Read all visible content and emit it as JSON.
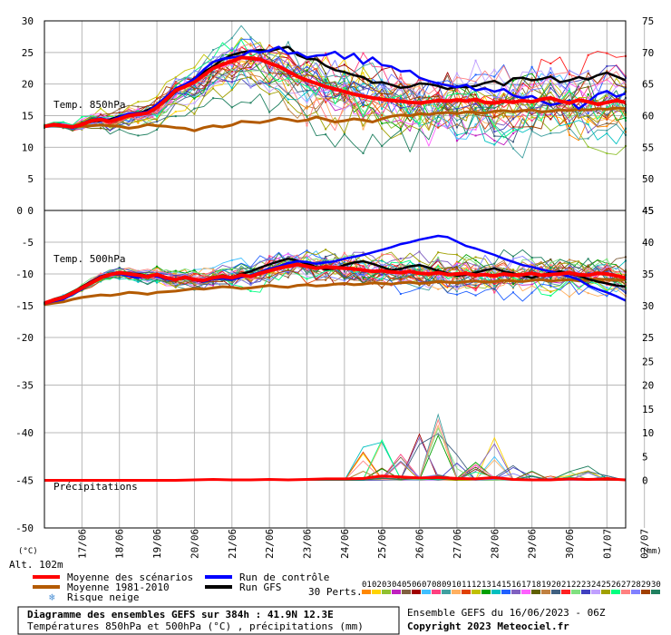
{
  "chart_data": {
    "type": "line",
    "dates": [
      "17/06",
      "18/06",
      "19/06",
      "20/06",
      "21/06",
      "22/06",
      "23/06",
      "24/06",
      "25/06",
      "26/06",
      "27/06",
      "28/06",
      "29/06",
      "30/06",
      "01/07",
      "02/07"
    ],
    "units_left": "(°C)",
    "units_right": "(mm)",
    "altitude": "Alt. 102m",
    "panels": [
      {
        "id": "t850",
        "label": "Temp. 850hPa",
        "ylim": [
          0,
          30
        ],
        "yticks": [
          0,
          5,
          10,
          15,
          20,
          25,
          30
        ],
        "right_ticks": [
          "45",
          "50",
          "55",
          "60",
          "65",
          "70",
          "75"
        ],
        "x": [
          0,
          0.25,
          0.5,
          0.75,
          1,
          1.25,
          1.5,
          1.75,
          2,
          2.25,
          2.5,
          2.75,
          3,
          3.25,
          3.5,
          3.75,
          4,
          4.25,
          4.5,
          4.75,
          5,
          5.25,
          5.5,
          5.75,
          6,
          6.25,
          6.5,
          6.75,
          7,
          7.25,
          7.5,
          7.75,
          8,
          8.25,
          8.5,
          8.75,
          9,
          9.25,
          9.5,
          9.75,
          10,
          10.25,
          10.5,
          10.75,
          11,
          11.25,
          11.5,
          11.75,
          12,
          12.25,
          12.5,
          12.75,
          13,
          13.25,
          13.5,
          13.75,
          14,
          14.25,
          14.5,
          14.75,
          15,
          15.25,
          15.5
        ],
        "mean": [
          13.3,
          13.6,
          13.4,
          13.2,
          13.6,
          14.2,
          14.4,
          14.1,
          14.5,
          15.0,
          15.2,
          15.4,
          16.3,
          17.6,
          19.0,
          19.6,
          20.3,
          21.4,
          22.5,
          23.1,
          23.6,
          24.2,
          24.1,
          23.9,
          23.3,
          22.8,
          22.0,
          21.2,
          20.6,
          20.1,
          19.6,
          19.2,
          18.8,
          18.4,
          18.1,
          17.8,
          17.6,
          17.4,
          17.3,
          17.1,
          17.0,
          17.2,
          17.4,
          17.3,
          17.5,
          17.3,
          17.6,
          17.1,
          17.0,
          17.3,
          17.1,
          17.4,
          17.2,
          17.6,
          17.8,
          17.3,
          17.0,
          17.5,
          17.2,
          16.8,
          17.1,
          17.4,
          17.1
        ],
        "control": [
          13.3,
          13.7,
          13.5,
          13.0,
          13.7,
          14.3,
          14.6,
          14.2,
          14.8,
          15.3,
          15.4,
          15.6,
          16.8,
          18.0,
          19.3,
          20.0,
          20.8,
          22.3,
          23.5,
          24.0,
          24.2,
          24.4,
          25.3,
          25.0,
          25.3,
          25.9,
          24.8,
          25.0,
          24.2,
          24.5,
          24.6,
          25.1,
          24.0,
          24.8,
          23.2,
          24.2,
          23.0,
          22.8,
          22.0,
          22.1,
          21.0,
          20.5,
          20.1,
          19.8,
          19.5,
          19.9,
          19.0,
          19.3,
          18.8,
          19.2,
          18.2,
          17.8,
          18.1,
          17.3,
          16.7,
          17.0,
          17.4,
          16.1,
          17.2,
          18.4,
          18.9,
          18.0,
          18.5
        ],
        "gfs": [
          13.3,
          13.6,
          13.5,
          13.1,
          13.5,
          14.1,
          14.2,
          14.4,
          14.9,
          15.2,
          15.3,
          15.9,
          16.6,
          17.4,
          18.8,
          19.7,
          20.9,
          21.9,
          22.8,
          23.9,
          24.6,
          25.0,
          25.2,
          25.4,
          25.2,
          25.6,
          25.9,
          24.6,
          24.0,
          23.9,
          22.9,
          22.2,
          21.9,
          21.4,
          21.1,
          20.2,
          20.3,
          19.9,
          19.4,
          19.6,
          20.1,
          20.0,
          19.7,
          19.2,
          19.6,
          19.5,
          19.7,
          20.2,
          20.5,
          19.8,
          20.9,
          21.0,
          20.6,
          20.8,
          21.2,
          20.3,
          20.6,
          21.1,
          20.7,
          21.4,
          21.8,
          21.2,
          20.6
        ],
        "climatology": [
          13.4,
          13.4,
          13.3,
          13.3,
          13.3,
          13.4,
          13.5,
          13.4,
          13.3,
          13.0,
          13.2,
          13.6,
          13.4,
          13.3,
          13.1,
          13.0,
          12.6,
          13.1,
          13.4,
          13.2,
          13.5,
          14.1,
          14.0,
          13.9,
          14.2,
          14.6,
          14.4,
          14.1,
          14.3,
          14.8,
          14.4,
          14.0,
          14.2,
          14.5,
          14.3,
          14.0,
          14.5,
          14.9,
          15.1,
          15.0,
          15.3,
          15.2,
          15.4,
          15.5,
          15.3,
          15.6,
          15.5,
          15.4,
          15.7,
          15.8,
          15.6,
          15.8,
          15.9,
          15.6,
          15.7,
          15.9,
          15.8,
          16.0,
          15.9,
          16.1,
          16.0,
          16.2,
          16.1
        ]
      },
      {
        "id": "t500",
        "label": "Temp. 500hPa",
        "ylim": [
          -20,
          0
        ],
        "yticks": [
          -20,
          -15,
          -10,
          -5,
          0
        ],
        "right_ticks": [
          "25",
          "30",
          "35",
          "40",
          "45"
        ],
        "x": [
          0,
          0.25,
          0.5,
          0.75,
          1,
          1.25,
          1.5,
          1.75,
          2,
          2.25,
          2.5,
          2.75,
          3,
          3.25,
          3.5,
          3.75,
          4,
          4.25,
          4.5,
          4.75,
          5,
          5.25,
          5.5,
          5.75,
          6,
          6.25,
          6.5,
          6.75,
          7,
          7.25,
          7.5,
          7.75,
          8,
          8.25,
          8.5,
          8.75,
          9,
          9.25,
          9.5,
          9.75,
          10,
          10.25,
          10.5,
          10.75,
          11,
          11.25,
          11.5,
          11.75,
          12,
          12.25,
          12.5,
          12.75,
          13,
          13.25,
          13.5,
          13.75,
          14,
          14.25,
          14.5,
          14.75,
          15,
          15.25,
          15.5
        ],
        "mean": [
          -14.6,
          -14.1,
          -13.7,
          -13.0,
          -12.2,
          -11.4,
          -10.6,
          -10.1,
          -9.8,
          -10.0,
          -10.2,
          -10.4,
          -10.1,
          -10.6,
          -10.9,
          -10.5,
          -10.9,
          -11.0,
          -10.6,
          -10.4,
          -10.6,
          -10.2,
          -10.4,
          -9.9,
          -9.5,
          -9.1,
          -8.8,
          -8.5,
          -8.8,
          -9.1,
          -8.9,
          -9.0,
          -9.1,
          -9.2,
          -9.4,
          -9.6,
          -9.5,
          -9.7,
          -9.8,
          -9.6,
          -9.9,
          -10.0,
          -9.8,
          -10.1,
          -10.0,
          -9.9,
          -10.2,
          -10.1,
          -10.3,
          -10.0,
          -10.2,
          -10.1,
          -9.9,
          -10.2,
          -10.1,
          -10.0,
          -9.8,
          -10.1,
          -10.2,
          -9.9,
          -10.0,
          -10.3,
          -10.6
        ],
        "control": [
          -14.7,
          -14.3,
          -14.0,
          -13.2,
          -12.4,
          -11.3,
          -10.5,
          -10.2,
          -10.0,
          -10.3,
          -10.6,
          -10.2,
          -10.4,
          -10.8,
          -11.0,
          -10.6,
          -11.0,
          -11.2,
          -10.8,
          -10.7,
          -10.9,
          -10.5,
          -10.2,
          -9.7,
          -9.2,
          -8.8,
          -8.3,
          -8.0,
          -8.1,
          -8.4,
          -8.2,
          -8.0,
          -7.6,
          -7.3,
          -7.0,
          -6.6,
          -6.2,
          -5.8,
          -5.3,
          -5.0,
          -4.6,
          -4.3,
          -4.0,
          -4.2,
          -4.9,
          -5.6,
          -6.0,
          -6.5,
          -7.0,
          -7.6,
          -8.1,
          -8.6,
          -8.9,
          -9.3,
          -9.6,
          -10.0,
          -10.4,
          -10.9,
          -11.8,
          -12.4,
          -12.9,
          -13.5,
          -14.2
        ],
        "gfs": [
          -14.6,
          -14.0,
          -13.6,
          -12.9,
          -12.0,
          -11.2,
          -10.4,
          -10.0,
          -9.7,
          -9.9,
          -10.0,
          -10.3,
          -10.2,
          -10.5,
          -10.8,
          -10.4,
          -10.8,
          -10.9,
          -10.5,
          -10.3,
          -10.5,
          -10.0,
          -9.6,
          -9.0,
          -8.5,
          -8.0,
          -7.6,
          -7.9,
          -8.4,
          -8.9,
          -9.3,
          -9.1,
          -8.6,
          -8.2,
          -8.0,
          -8.4,
          -8.9,
          -9.4,
          -9.2,
          -8.8,
          -8.6,
          -9.0,
          -9.5,
          -9.9,
          -10.3,
          -10.1,
          -9.8,
          -9.4,
          -9.1,
          -9.6,
          -9.9,
          -10.3,
          -10.6,
          -10.2,
          -9.8,
          -9.6,
          -9.9,
          -10.3,
          -10.8,
          -11.2,
          -11.5,
          -11.8,
          -12.0
        ],
        "climatology": [
          -14.8,
          -14.6,
          -14.4,
          -14.0,
          -13.7,
          -13.5,
          -13.3,
          -13.4,
          -13.2,
          -12.9,
          -13.0,
          -13.2,
          -12.9,
          -12.8,
          -12.7,
          -12.5,
          -12.3,
          -12.4,
          -12.2,
          -12.0,
          -12.1,
          -12.3,
          -12.2,
          -12.0,
          -11.8,
          -12.0,
          -12.1,
          -11.8,
          -11.7,
          -11.9,
          -11.8,
          -11.6,
          -11.5,
          -11.7,
          -11.6,
          -11.4,
          -11.5,
          -11.6,
          -11.4,
          -11.3,
          -11.5,
          -11.4,
          -11.2,
          -11.3,
          -11.4,
          -11.2,
          -11.1,
          -11.3,
          -11.2,
          -11.0,
          -11.1,
          -11.2,
          -11.0,
          -10.9,
          -11.1,
          -11.0,
          -10.9,
          -11.1,
          -11.0,
          -10.8,
          -10.9,
          -11.0,
          -10.9
        ]
      },
      {
        "id": "precip",
        "label": "Précipitations",
        "ylim": [
          -50,
          -30
        ],
        "yticks": [
          -50,
          -45,
          -40,
          -35,
          -30
        ],
        "right_ticks": [
          "0",
          "5",
          "10",
          "15",
          "20",
          "25"
        ],
        "right_tick_values": [
          -45,
          -42.5,
          -40,
          -37.5,
          -35,
          -32.5
        ],
        "mm_per_unit": 2,
        "x": [
          0,
          0.5,
          1,
          1.5,
          2,
          2.5,
          3,
          3.5,
          4,
          4.5,
          5,
          5.5,
          6,
          6.5,
          7,
          7.5,
          8,
          8.5,
          9,
          9.5,
          10,
          10.5,
          11,
          11.5,
          12,
          12.5,
          13,
          13.5,
          14,
          14.5,
          15,
          15.5
        ],
        "mean_mm": [
          0,
          0,
          0,
          0,
          0,
          0,
          0,
          0,
          0.1,
          0.2,
          0.1,
          0.1,
          0.2,
          0.1,
          0.2,
          0.3,
          0.3,
          0.4,
          0.9,
          0.7,
          0.5,
          0.6,
          0.4,
          0.3,
          0.6,
          0.2,
          0.1,
          0.1,
          0.3,
          0.2,
          0.3,
          0.1
        ],
        "peaks_mm": [
          0,
          0,
          0,
          0,
          0,
          0,
          0,
          0,
          0,
          0,
          0,
          0,
          0,
          0,
          0,
          0,
          0,
          7,
          9,
          6,
          12,
          21,
          8,
          4,
          13,
          4,
          2,
          1,
          2,
          3,
          1,
          0
        ]
      }
    ]
  },
  "legend": {
    "items": [
      {
        "label": "Moyenne des scénarios",
        "color": "#ff0000"
      },
      {
        "label": "Moyenne 1981-2010",
        "color": "#b35a00"
      },
      {
        "label": "Run de contrôle",
        "color": "#0000ff"
      },
      {
        "label": "Run GFS",
        "color": "#000000"
      }
    ],
    "snow_label": "Risque neige",
    "perts_label": "30 Perts.",
    "pert_numbers": [
      "01",
      "02",
      "03",
      "04",
      "05",
      "06",
      "07",
      "08",
      "09",
      "10",
      "11",
      "12",
      "13",
      "14",
      "15",
      "16",
      "17",
      "18",
      "19",
      "20",
      "21",
      "22",
      "23",
      "24",
      "25",
      "26",
      "27",
      "28",
      "29",
      "30"
    ],
    "pert_colors": [
      "#ff8800",
      "#ffd400",
      "#90c030",
      "#c020c0",
      "#806040",
      "#a00000",
      "#40c0ff",
      "#ff4080",
      "#40a0a0",
      "#ffb060",
      "#e04000",
      "#c0c000",
      "#00a000",
      "#00c0c0",
      "#2060ff",
      "#8060c0",
      "#ff60ff",
      "#606000",
      "#c08040",
      "#406080",
      "#ff2020",
      "#80e080",
      "#4040c0",
      "#c0a0ff",
      "#a0a000",
      "#00ff80",
      "#ff8080",
      "#8080ff",
      "#a04000",
      "#208060"
    ]
  },
  "footer": {
    "title": "Diagramme des ensembles GEFS sur 384h : 41.9N 12.3E",
    "subtitle": "Températures 850hPa et 500hPa (°C) , précipitations (mm)",
    "ensemble": "Ensemble GEFS du 16/06/2023 - 06Z",
    "copyright": "Copyright 2023 Meteociel.fr"
  }
}
